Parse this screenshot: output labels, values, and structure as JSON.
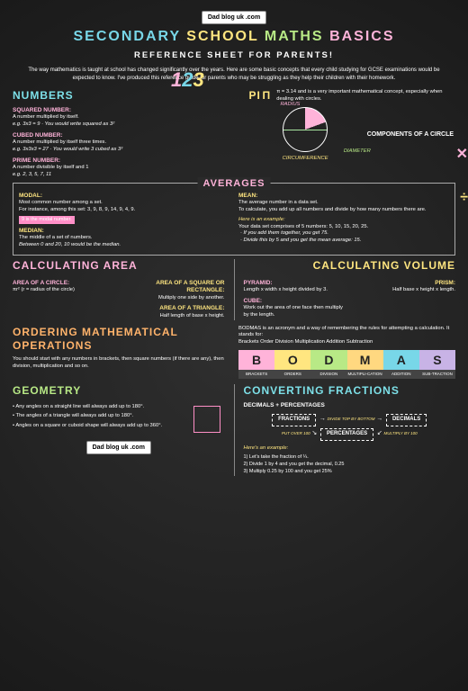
{
  "brand": "Dad blog uk .com",
  "title": {
    "w1": "SECONDARY",
    "w2": "SCHOOL",
    "w3": "MATHS",
    "w4": "BASICS"
  },
  "subtitle": "REFERENCE SHEET FOR PARENTS!",
  "intro": "The way mathematics is taught at school has changed significantly over the years. Here are some basic concepts that every child studying for GCSE examinations would be expected to know. I've produced this reference guide for parents who may be struggling as they help their children with their homework.",
  "numbers": {
    "title": "NUMBERS",
    "squared": {
      "label": "SQUARED NUMBER:",
      "body": "A number multiplied by itself.",
      "eg": "e.g. 3x3 = 9  ·  You would write squared as 3²"
    },
    "cubed": {
      "label": "CUBED NUMBER:",
      "body": "A number multiplied by itself three times.",
      "eg": "e.g. 3x3x3 = 27  ·  You would write 3 cubed as 3³"
    },
    "prime": {
      "label": "PRIME NUMBER:",
      "body": "A number divisible by itself and 1",
      "eg": "e.g. 2, 3, 5, 7, 11"
    }
  },
  "pi": {
    "title": "PI",
    "symbol": "π",
    "body": "π = 3.14 and is a very important mathematical concept, especially when dealing with circles.",
    "comp_title": "COMPONENTS OF A CIRCLE",
    "radius": "RADIUS",
    "diameter": "DIAMETER",
    "circumference": "CIRCUMFERENCE"
  },
  "averages": {
    "title": "AVERAGES",
    "modal": {
      "label": "MODAL:",
      "body": "Most common number among a set.",
      "eg": "For instance, among this set: 3, 9, 8, 9, 14, 9, 4, 9.",
      "tag": "9 is the modal number."
    },
    "median": {
      "label": "MEDIAN:",
      "body": "The middle of a set of numbers.",
      "eg": "Between 0 and 20, 10 would be the median."
    },
    "mean": {
      "label": "MEAN:",
      "body": "The average number in a data set.",
      "body2": "To calculate, you add up all numbers and divide by how many numbers there are.",
      "ex_label": "Here is an example:",
      "ex1": "Your data set comprises of 5 numbers: 5, 10, 15, 20, 25.",
      "ex2": "· If you add them together, you get 75.",
      "ex3": "· Divide this by 5 and you get the mean average: 15."
    }
  },
  "area": {
    "title": "CALCULATING AREA",
    "square": {
      "label": "AREA OF A SQUARE OR RECTANGLE:",
      "body": "Multiply one side by another."
    },
    "circle": {
      "label": "AREA OF A CIRCLE:",
      "body": "πr² (r = radius of the circle)"
    },
    "triangle": {
      "label": "AREA OF A TRIANGLE:",
      "body": "Half length of base x height."
    }
  },
  "volume": {
    "title": "CALCULATING VOLUME",
    "pyramid": {
      "label": "PYRAMID:",
      "body": "Length x width x height divided by 3."
    },
    "prism": {
      "label": "PRISM:",
      "body": "Half base x height x length."
    },
    "cube": {
      "label": "CUBE:",
      "body": "Work out the area of one face then multiply by the length."
    }
  },
  "bodmas": {
    "title": "ORDERING MATHEMATICAL OPERATIONS",
    "intro": "BODMAS is an acronym and a way of remembering the rules for attempting a calculation. It stands for:",
    "expand": "Brackets  Order  Division  Multiplication  Addition  Subtraction",
    "body": "You should start with any numbers in brackets, then square numbers (if there are any), then division, multiplication and so on.",
    "letters": [
      "B",
      "O",
      "D",
      "M",
      "A",
      "S"
    ],
    "colors": [
      "#ffb3d9",
      "#ffe680",
      "#b8e986",
      "#ffd880",
      "#78d7e8",
      "#c8b3e6"
    ],
    "labels": [
      "BRACKETS",
      "ORDERS",
      "DIVISION",
      "MULTIPLI-CATION",
      "ADDITION",
      "SUB-TRACTION"
    ]
  },
  "geometry": {
    "title": "GEOMETRY",
    "b1": "Any angles on a straight line will always add up to 180°.",
    "b2": "The angles of a triangle will always add up to 180°.",
    "b3": "Angles on a square or cuboid shape will always add up to 360°."
  },
  "convert": {
    "title": "CONVERTING FRACTIONS",
    "sub": "DECIMALS + PERCENTAGES",
    "fractions": "FRACTIONS",
    "decimals": "DECIMALS",
    "percentages": "PERCENTAGES",
    "a1": "DIVIDE TOP BY BOTTOM",
    "a2": "PUT OVER 100",
    "a3": "MULTIPLY BY 100",
    "ex_label": "Here's an example:",
    "s1": "1) Let's take the fraction of ¼.",
    "s2": "2) Divide 1 by 4 and you get the decimal, 0.25",
    "s3": "3) Multiply 0.25 by 100 and you get 25%"
  }
}
